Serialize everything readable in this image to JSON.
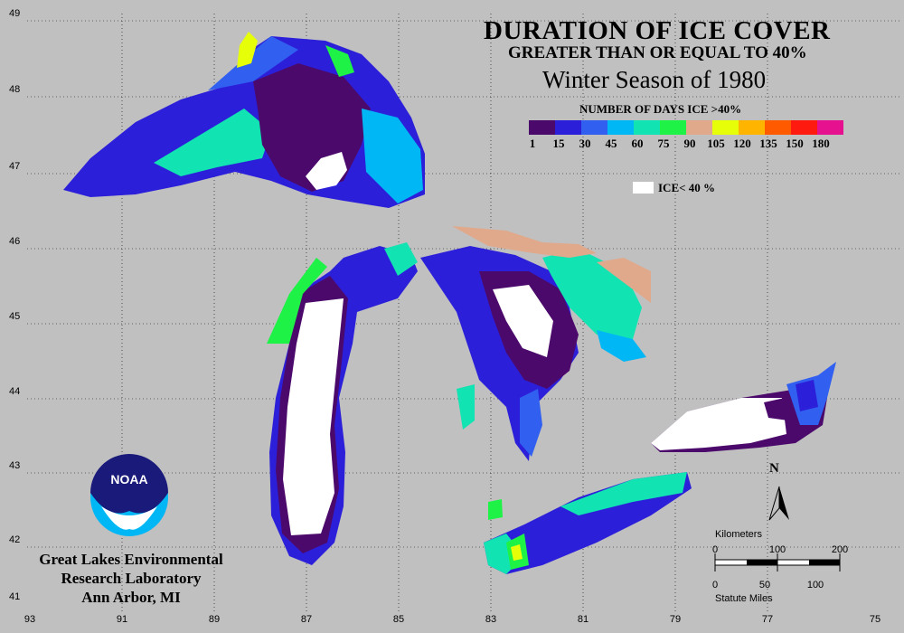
{
  "title": "DURATION OF ICE COVER",
  "subtitle": "GREATER THAN OR EQUAL TO 40%",
  "season": "Winter Season of 1980",
  "legend": {
    "title": "NUMBER OF DAYS ICE >40%",
    "colors": [
      "#4b0a6b",
      "#2c1fd9",
      "#3160f0",
      "#00b7f5",
      "#11e3b2",
      "#1ef246",
      "#e0a98c",
      "#e6ff08",
      "#ffb400",
      "#ff5a00",
      "#ff1a10",
      "#e6118f"
    ],
    "ticks": [
      "1",
      "15",
      "30",
      "45",
      "60",
      "75",
      "90",
      "105",
      "120",
      "135",
      "150",
      "180"
    ],
    "ice_label": "ICE< 40 %"
  },
  "axes": {
    "lon_ticks": [
      "93",
      "91",
      "89",
      "87",
      "85",
      "83",
      "81",
      "79",
      "77",
      "75"
    ],
    "lat_ticks": [
      "49",
      "48",
      "47",
      "46",
      "45",
      "44",
      "43",
      "42",
      "41"
    ]
  },
  "north_arrow": "N",
  "scale_bar": {
    "km_title": "Kilometers",
    "km_ticks": [
      "0",
      "100",
      "200"
    ],
    "mi_ticks": [
      "0",
      "50",
      "100"
    ],
    "mi_title": "Statute Miles"
  },
  "logo_text": "NOAA",
  "organization": {
    "line1": "Great Lakes Environmental",
    "line2": "Research Laboratory",
    "line3": "Ann Arbor, MI"
  }
}
